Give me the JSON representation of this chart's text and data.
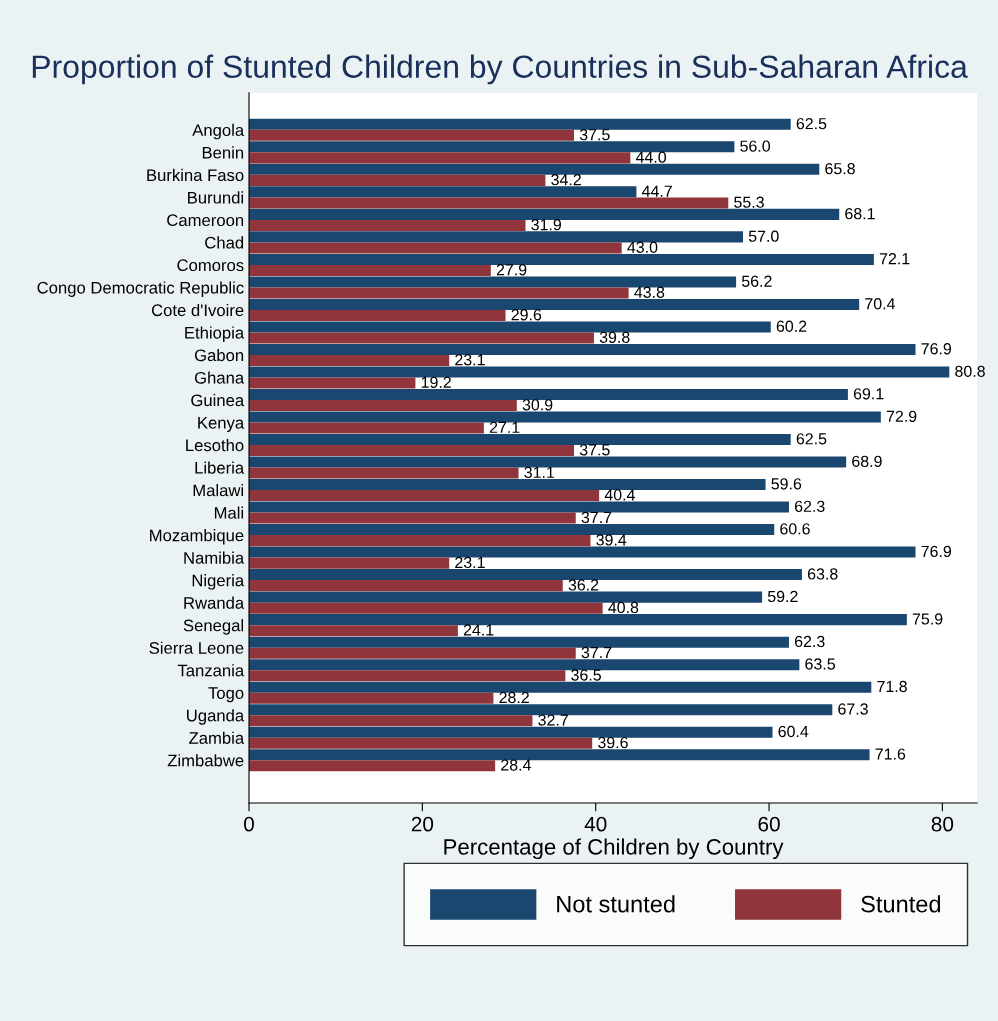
{
  "chart_data": {
    "type": "bar",
    "orientation": "horizontal",
    "title": "Proportion of Stunted Children by Countries in Sub-Saharan Africa",
    "xlabel": "Percentage of Children by Country",
    "categories": [
      "Angola",
      "Benin",
      "Burkina Faso",
      "Burundi",
      "Cameroon",
      "Chad",
      "Comoros",
      "Congo Democratic Republic",
      "Cote d'Ivoire",
      "Ethiopia",
      "Gabon",
      "Ghana",
      "Guinea",
      "Kenya",
      "Lesotho",
      "Liberia",
      "Malawi",
      "Mali",
      "Mozambique",
      "Namibia",
      "Nigeria",
      "Rwanda",
      "Senegal",
      "Sierra Leone",
      "Tanzania",
      "Togo",
      "Uganda",
      "Zambia",
      "Zimbabwe"
    ],
    "series": [
      {
        "name": "Not stunted",
        "color": "#1a476f",
        "values": [
          62.5,
          56.0,
          65.8,
          44.7,
          68.1,
          57.0,
          72.1,
          56.2,
          70.4,
          60.2,
          76.9,
          80.8,
          69.1,
          72.9,
          62.5,
          68.9,
          59.6,
          62.3,
          60.6,
          76.9,
          63.8,
          59.2,
          75.9,
          62.3,
          63.5,
          71.8,
          67.3,
          60.4,
          71.6
        ],
        "value_labels": [
          "62.5",
          "56.0",
          "65.8",
          "44.7",
          "68.1",
          "57.0",
          "72.1",
          "56.2",
          "70.4",
          "60.2",
          "76.9",
          "80.8",
          "69.1",
          "72.9",
          "62.5",
          "68.9",
          "59.6",
          "62.3",
          "60.6",
          "76.9",
          "63.8",
          "59.2",
          "75.9",
          "62.3",
          "63.5",
          "71.8",
          "67.3",
          "60.4",
          "71.6"
        ]
      },
      {
        "name": "Stunted",
        "color": "#90353b",
        "values": [
          37.5,
          44.0,
          34.2,
          55.3,
          31.9,
          43.0,
          27.9,
          43.8,
          29.6,
          39.8,
          23.1,
          19.2,
          30.9,
          27.1,
          37.5,
          31.1,
          40.4,
          37.7,
          39.4,
          23.1,
          36.2,
          40.8,
          24.1,
          37.7,
          36.5,
          28.2,
          32.7,
          39.6,
          28.4
        ],
        "value_labels": [
          "37.5",
          "44.0",
          "34.2",
          "55.3",
          "31.9",
          "43.0",
          "27.9",
          "43.8",
          "29.6",
          "39.8",
          "23.1",
          "19.2",
          "30.9",
          "27.1",
          "37.5",
          "31.1",
          "40.4",
          "37.7",
          "39.4",
          "23.1",
          "36.2",
          "40.8",
          "24.1",
          "37.7",
          "36.5",
          "28.2",
          "32.7",
          "39.6",
          "28.4"
        ]
      }
    ],
    "xlim": [
      0,
      84
    ],
    "xticks": [
      0,
      20,
      40,
      60,
      80
    ],
    "grid": false,
    "legend": "bottom"
  }
}
